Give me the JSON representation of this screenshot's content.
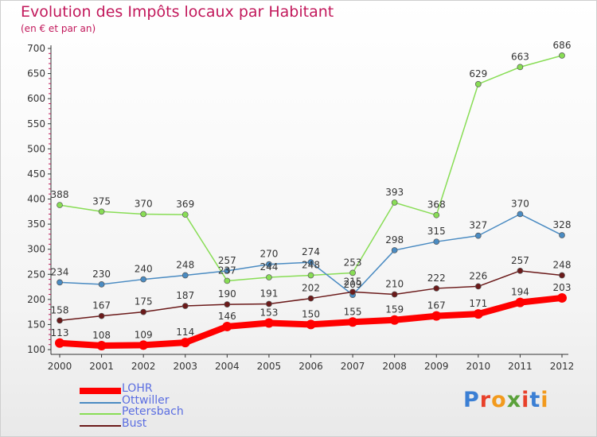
{
  "title": "Evolution des Impôts locaux par Habitant",
  "subtitle": "(en € et par an)",
  "logo": {
    "text": "Proxiti",
    "letter_colors": [
      "#3b7fd4",
      "#e8402a",
      "#f29a1d",
      "#5aa13a",
      "#e8402a",
      "#3b7fd4",
      "#f29a1d"
    ]
  },
  "chart_data": {
    "type": "line",
    "x": [
      "2000",
      "2001",
      "2002",
      "2003",
      "2004",
      "2005",
      "2006",
      "2007",
      "2008",
      "2009",
      "2010",
      "2011",
      "2012"
    ],
    "ylim": [
      100,
      700
    ],
    "yticks": [
      100,
      150,
      200,
      250,
      300,
      350,
      400,
      450,
      500,
      550,
      600,
      650,
      700
    ],
    "grid": false,
    "legend_position": "bottom-left",
    "series": [
      {
        "name": "LOHR",
        "color": "#ff0000",
        "values": [
          113,
          108,
          109,
          114,
          146,
          153,
          150,
          155,
          159,
          167,
          171,
          194,
          203
        ]
      },
      {
        "name": "Ottwiller",
        "color": "#4a8bc2",
        "values": [
          234,
          230,
          240,
          248,
          257,
          270,
          274,
          209,
          298,
          315,
          327,
          370,
          328
        ]
      },
      {
        "name": "Petersbach",
        "color": "#88dd55",
        "values": [
          388,
          375,
          370,
          369,
          237,
          244,
          248,
          253,
          393,
          368,
          629,
          663,
          686
        ]
      },
      {
        "name": "Bust",
        "color": "#6b1a1a",
        "values": [
          158,
          167,
          175,
          187,
          190,
          191,
          202,
          215,
          210,
          222,
          226,
          257,
          248
        ]
      }
    ]
  }
}
